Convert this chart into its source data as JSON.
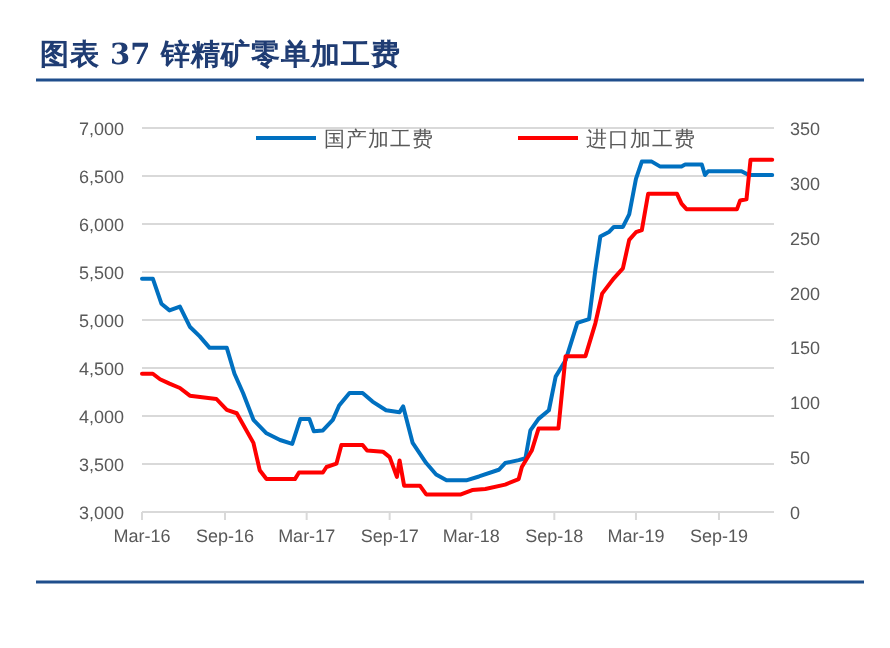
{
  "chart_data": {
    "type": "line",
    "title": "图表 37 锌精矿零单加工费",
    "xlim": [
      "2016-03-01",
      "2020-01-01"
    ],
    "xticks": [
      {
        "value": "2016-03-01",
        "label": "Mar-16"
      },
      {
        "value": "2016-09-01",
        "label": "Sep-16"
      },
      {
        "value": "2017-03-01",
        "label": "Mar-17"
      },
      {
        "value": "2017-09-01",
        "label": "Sep-17"
      },
      {
        "value": "2018-03-01",
        "label": "Mar-18"
      },
      {
        "value": "2018-09-01",
        "label": "Sep-18"
      },
      {
        "value": "2019-03-01",
        "label": "Mar-19"
      },
      {
        "value": "2019-09-01",
        "label": "Sep-19"
      }
    ],
    "ylim": [
      3000,
      7000
    ],
    "yticks": [
      {
        "value": 3000,
        "label": "3,000"
      },
      {
        "value": 3500,
        "label": "3,500"
      },
      {
        "value": 4000,
        "label": "4,000"
      },
      {
        "value": 4500,
        "label": "4,500"
      },
      {
        "value": 5000,
        "label": "5,000"
      },
      {
        "value": 5500,
        "label": "5,500"
      },
      {
        "value": 6000,
        "label": "6,000"
      },
      {
        "value": 6500,
        "label": "6,500"
      },
      {
        "value": 7000,
        "label": "7,000"
      }
    ],
    "y2lim": [
      0,
      350
    ],
    "y2ticks": [
      0,
      50,
      100,
      150,
      200,
      250,
      300,
      350
    ],
    "grid": "y",
    "legend": "top",
    "marker": "none",
    "line_style": "solid",
    "series": [
      {
        "name": "国产加工费",
        "color": "#0070c0",
        "axis": "y",
        "x": [
          "2016-03-01",
          "2016-03-25",
          "2016-04-13",
          "2016-05-01",
          "2016-05-24",
          "2016-06-15",
          "2016-07-07",
          "2016-07-29",
          "2016-09-05",
          "2016-09-22",
          "2016-10-11",
          "2016-11-03",
          "2016-12-02",
          "2017-01-01",
          "2017-01-28",
          "2017-02-15",
          "2017-03-07",
          "2017-03-17",
          "2017-04-06",
          "2017-04-28",
          "2017-05-12",
          "2017-06-04",
          "2017-07-03",
          "2017-07-25",
          "2017-08-24",
          "2017-09-23",
          "2017-10-01",
          "2017-10-22",
          "2017-11-21",
          "2017-12-13",
          "2018-01-05",
          "2018-02-18",
          "2018-03-18",
          "2018-05-01",
          "2018-05-15",
          "2018-06-14",
          "2018-06-29",
          "2018-07-10",
          "2018-07-28",
          "2018-08-20",
          "2018-09-04",
          "2018-09-26",
          "2018-10-22",
          "2018-11-17",
          "2018-12-01",
          "2018-12-12",
          "2019-01-01",
          "2019-01-11",
          "2019-01-31",
          "2019-02-14",
          "2019-03-01",
          "2019-03-14",
          "2019-04-05",
          "2019-04-23",
          "2019-06-10",
          "2019-06-18",
          "2019-07-25",
          "2019-08-01",
          "2019-08-08",
          "2019-10-21",
          "2019-11-06",
          "2019-12-28"
        ],
        "values": [
          5430,
          5430,
          5170,
          5100,
          5140,
          4930,
          4830,
          4710,
          4710,
          4440,
          4240,
          3960,
          3820,
          3750,
          3710,
          3970,
          3970,
          3840,
          3850,
          3960,
          4110,
          4240,
          4240,
          4150,
          4060,
          4040,
          4100,
          3720,
          3510,
          3390,
          3330,
          3330,
          3370,
          3440,
          3510,
          3540,
          3560,
          3850,
          3970,
          4060,
          4410,
          4580,
          4970,
          5010,
          5520,
          5870,
          5920,
          5970,
          5970,
          6100,
          6470,
          6650,
          6650,
          6600,
          6600,
          6620,
          6620,
          6510,
          6550,
          6550,
          6510,
          6510
        ]
      },
      {
        "name": "进口加工费",
        "color": "#ff0000",
        "axis": "y2",
        "x": [
          "2016-03-01",
          "2016-03-25",
          "2016-04-10",
          "2016-05-01",
          "2016-05-24",
          "2016-06-15",
          "2016-08-13",
          "2016-09-05",
          "2016-09-27",
          "2016-11-03",
          "2016-11-17",
          "2016-12-02",
          "2017-02-03",
          "2017-02-12",
          "2017-04-06",
          "2017-04-14",
          "2017-05-06",
          "2017-05-17",
          "2017-07-03",
          "2017-07-13",
          "2017-08-17",
          "2017-09-01",
          "2017-09-17",
          "2017-09-23",
          "2017-10-03",
          "2017-11-07",
          "2017-11-21",
          "2018-02-06",
          "2018-03-03",
          "2018-04-01",
          "2018-05-15",
          "2018-06-14",
          "2018-06-21",
          "2018-07-13",
          "2018-07-28",
          "2018-09-10",
          "2018-09-26",
          "2018-11-09",
          "2018-12-01",
          "2018-12-16",
          "2019-01-11",
          "2019-01-31",
          "2019-02-14",
          "2019-03-01",
          "2019-03-14",
          "2019-03-28",
          "2019-05-31",
          "2019-06-10",
          "2019-06-21",
          "2019-10-11",
          "2019-10-18",
          "2019-11-01",
          "2019-11-10",
          "2019-12-28"
        ],
        "values": [
          126,
          126,
          121,
          117,
          113,
          106,
          103,
          93,
          90,
          63,
          38,
          30,
          30,
          36,
          36,
          41,
          44,
          61,
          61,
          56,
          55,
          50,
          32,
          47,
          24,
          24,
          16,
          16,
          20,
          21,
          25,
          30,
          41,
          56,
          76,
          76,
          142,
          142,
          172,
          199,
          213,
          222,
          248,
          255,
          257,
          290,
          290,
          281,
          276,
          276,
          284,
          285,
          321,
          321
        ]
      }
    ]
  }
}
